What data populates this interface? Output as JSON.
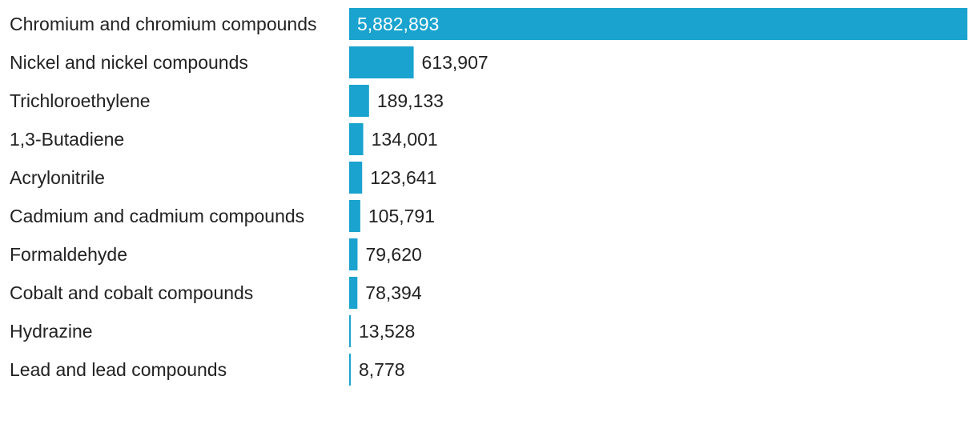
{
  "chart_data": {
    "type": "bar",
    "orientation": "horizontal",
    "categories": [
      "Chromium and chromium compounds",
      "Nickel and nickel compounds",
      "Trichloroethylene",
      "1,3-Butadiene",
      "Acrylonitrile",
      "Cadmium and cadmium compounds",
      "Formaldehyde",
      "Cobalt and cobalt compounds",
      "Hydrazine",
      "Lead and lead compounds"
    ],
    "values": [
      5882893,
      613907,
      189133,
      134001,
      123641,
      105791,
      79620,
      78394,
      13528,
      8778
    ],
    "value_labels": [
      "5,882,893",
      "613,907",
      "189,133",
      "134,001",
      "123,641",
      "105,791",
      "79,620",
      "78,394",
      "13,528",
      "8,778"
    ],
    "title": "",
    "xlabel": "",
    "ylabel": "",
    "xlim": [
      0,
      5882893
    ],
    "grid": false,
    "legend": "none",
    "bar_color": "#1aa3cf"
  }
}
